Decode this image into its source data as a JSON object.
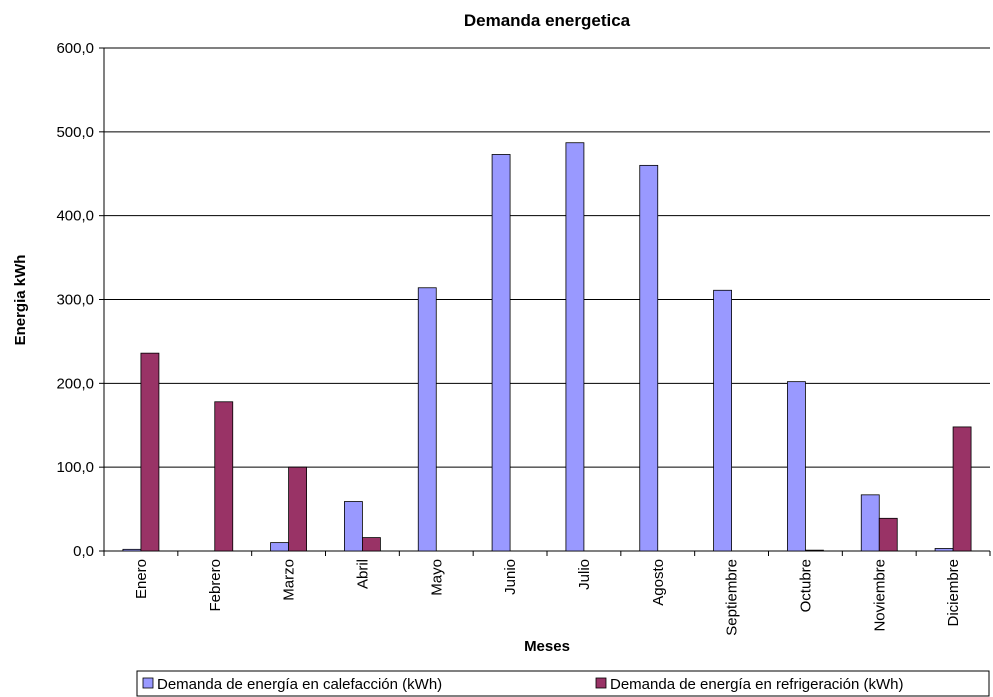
{
  "chart_data": {
    "type": "bar",
    "title": "Demanda energetica",
    "x_label": "Meses",
    "y_label": "Energia  kWh",
    "categories": [
      "Enero",
      "Febrero",
      "Marzo",
      "Abril",
      "Mayo",
      "Junio",
      "Julio",
      "Agosto",
      "Septiembre",
      "Octubre",
      "Noviembre",
      "Diciembre"
    ],
    "series": [
      {
        "name": "Demanda de energía en calefacción  (kWh)",
        "color": "#9999ff",
        "values": [
          2,
          0,
          10,
          59,
          314,
          473,
          487,
          460,
          311,
          202,
          67,
          3
        ]
      },
      {
        "name": "Demanda de energía en refrigeración  (kWh)",
        "color": "#993366",
        "values": [
          236,
          178,
          100,
          16,
          0,
          0,
          0,
          0,
          0,
          1,
          39,
          148
        ]
      }
    ],
    "ylim": [
      0,
      600
    ],
    "yticks": [
      {
        "value": 0,
        "label": "0,0"
      },
      {
        "value": 100,
        "label": "100,0"
      },
      {
        "value": 200,
        "label": "200,0"
      },
      {
        "value": 300,
        "label": "300,0"
      },
      {
        "value": 400,
        "label": "400,0"
      },
      {
        "value": 500,
        "label": "500,0"
      },
      {
        "value": 600,
        "label": "600,0"
      }
    ],
    "grid": true,
    "legend": "bottom"
  }
}
